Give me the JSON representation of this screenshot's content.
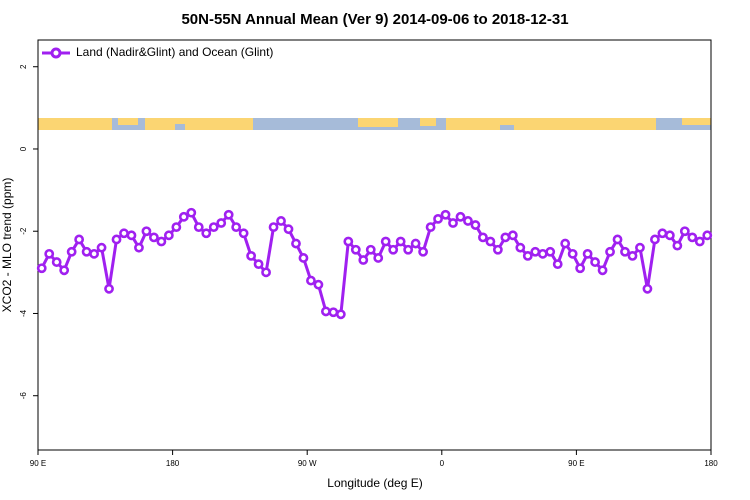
{
  "chart_data": {
    "type": "line",
    "title": "50N-55N Annual Mean (Ver 9)   2014-09-06 to 2018-12-31",
    "x_label": "Longitude (deg E)",
    "y_label": "XCO2 - MLO trend (ppm)",
    "xlim": [
      90,
      540
    ],
    "ylim": [
      2.65,
      -7.32
    ],
    "xticks": [
      {
        "value": 90,
        "label": "90 E"
      },
      180,
      {
        "value": 270,
        "label": "90 W"
      },
      {
        "value": 360,
        "label": "0"
      },
      {
        "value": 450,
        "label": "90 E"
      },
      {
        "value": 540,
        "label": "180"
      }
    ],
    "yticks": [
      2,
      0,
      -2,
      -4,
      -6
    ],
    "legend": "top-left",
    "x": [
      92.5,
      97.5,
      102.5,
      107.5,
      112.5,
      117.5,
      122.5,
      127.5,
      132.5,
      137.5,
      142.5,
      147.5,
      152.5,
      157.5,
      162.5,
      167.5,
      172.5,
      177.5,
      182.5,
      187.5,
      192.5,
      197.5,
      202.5,
      207.5,
      212.5,
      217.5,
      222.5,
      227.5,
      232.5,
      237.5,
      242.5,
      247.5,
      252.5,
      257.5,
      262.5,
      267.5,
      272.5,
      277.5,
      282.5,
      287.5,
      292.5,
      297.5,
      302.5,
      307.5,
      312.5,
      317.5,
      322.5,
      327.5,
      332.5,
      337.5,
      342.5,
      347.5,
      352.5,
      357.5,
      362.5,
      367.5,
      372.5,
      377.5,
      382.5,
      387.5,
      392.5,
      397.5,
      402.5,
      407.5,
      412.5,
      417.5,
      422.5,
      427.5,
      432.5,
      437.5,
      442.5,
      447.5,
      452.5,
      457.5,
      462.5,
      467.5,
      472.5,
      477.5,
      482.5,
      487.5,
      492.5,
      497.5,
      502.5,
      507.5,
      512.5,
      517.5,
      522.5,
      527.5,
      532.5,
      537.5
    ],
    "series": [
      {
        "name": "Land (Nadir&Glint) and Ocean (Glint)",
        "color": "#a020f0",
        "values": [
          -2.9,
          -2.55,
          -2.75,
          -2.95,
          -2.5,
          -2.2,
          -2.5,
          -2.55,
          -2.4,
          -3.4,
          -2.2,
          -2.05,
          -2.1,
          -2.4,
          -2.0,
          -2.15,
          -2.25,
          -2.1,
          -1.9,
          -1.65,
          -1.55,
          -1.9,
          -2.05,
          -1.9,
          -1.8,
          -1.6,
          -1.9,
          -2.05,
          -2.6,
          -2.8,
          -3.0,
          -1.9,
          -1.75,
          -1.95,
          -2.3,
          -2.65,
          -3.2,
          -3.3,
          -3.95,
          -3.97,
          -4.02,
          -2.25,
          -2.45,
          -2.7,
          -2.45,
          -2.65,
          -2.25,
          -2.45,
          -2.25,
          -2.45,
          -2.3,
          -2.5,
          -1.9,
          -1.7,
          -1.6,
          -1.8,
          -1.65,
          -1.75,
          -1.85,
          -2.15,
          -2.25,
          -2.45,
          -2.15,
          -2.1,
          -2.4,
          -2.6,
          -2.5,
          -2.55,
          -2.5,
          -2.8,
          -2.3,
          -2.55,
          -2.9,
          -2.55,
          -2.75,
          -2.95,
          -2.5,
          -2.2,
          -2.5,
          -2.6,
          -2.4,
          -3.4,
          -2.2,
          -2.05,
          -2.1,
          -2.35,
          -2.0,
          -2.15,
          -2.25,
          -2.1
        ]
      }
    ]
  }
}
